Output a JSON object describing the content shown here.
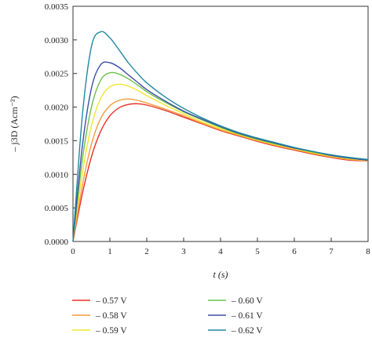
{
  "chart_data": {
    "type": "line",
    "xlabel": "t (s)",
    "ylabel": "– j3D (Acm⁻²)",
    "xlim": [
      0,
      8
    ],
    "ylim": [
      0,
      0.0035
    ],
    "x_ticks": [
      "0",
      "1",
      "2",
      "3",
      "4",
      "5",
      "6",
      "7",
      "8"
    ],
    "y_ticks": [
      "0.0000",
      "0.0005",
      "0.0010",
      "0.0015",
      "0.0020",
      "0.0025",
      "0.0030",
      "0.0035"
    ],
    "grid": false,
    "legend_position": "bottom",
    "x": [
      0,
      0.25,
      0.5,
      0.75,
      1.0,
      1.25,
      1.5,
      1.75,
      2.0,
      2.5,
      3.0,
      3.5,
      4.0,
      4.5,
      5.0,
      5.5,
      6.0,
      6.5,
      7.0,
      7.5,
      8.0
    ],
    "series": [
      {
        "name": "– 0.57 V",
        "color": "#e8312a",
        "values": [
          0,
          0.0007,
          0.00126,
          0.00164,
          0.00187,
          0.00199,
          0.00204,
          0.00205,
          0.00203,
          0.00195,
          0.00185,
          0.00175,
          0.00165,
          0.00157,
          0.00149,
          0.00142,
          0.00136,
          0.0013,
          0.00125,
          0.00121,
          0.0012
        ]
      },
      {
        "name": "– 0.58 V",
        "color": "#f59a3a",
        "values": [
          0,
          0.00082,
          0.00145,
          0.00183,
          0.00202,
          0.0021,
          0.00212,
          0.0021,
          0.00206,
          0.00197,
          0.00187,
          0.00176,
          0.00166,
          0.00158,
          0.0015,
          0.00143,
          0.00137,
          0.00131,
          0.00126,
          0.00122,
          0.0012
        ]
      },
      {
        "name": "– 0.59 V",
        "color": "#f2e62e",
        "values": [
          0,
          0.001,
          0.00172,
          0.00213,
          0.0023,
          0.00234,
          0.00231,
          0.00225,
          0.00217,
          0.00203,
          0.0019,
          0.00178,
          0.00168,
          0.00159,
          0.00151,
          0.00144,
          0.00138,
          0.00132,
          0.00127,
          0.00123,
          0.00121
        ]
      },
      {
        "name": "– 0.60 V",
        "color": "#6cc04a",
        "values": [
          0,
          0.0012,
          0.002,
          0.0024,
          0.00251,
          0.00249,
          0.00242,
          0.00233,
          0.00223,
          0.00207,
          0.00193,
          0.00181,
          0.0017,
          0.0016,
          0.00152,
          0.00145,
          0.00139,
          0.00133,
          0.00128,
          0.00124,
          0.00121
        ]
      },
      {
        "name": "– 0.61 V",
        "color": "#3d4fa8",
        "values": [
          0,
          0.0014,
          0.00228,
          0.00263,
          0.00266,
          0.00259,
          0.00248,
          0.00237,
          0.00226,
          0.00209,
          0.00194,
          0.00182,
          0.00171,
          0.00161,
          0.00153,
          0.00146,
          0.00139,
          0.00134,
          0.00128,
          0.00124,
          0.00121
        ]
      },
      {
        "name": "– 0.62 V",
        "color": "#1f8a9e",
        "values": [
          0,
          0.00185,
          0.0029,
          0.00312,
          0.00303,
          0.00285,
          0.00266,
          0.0025,
          0.00236,
          0.00215,
          0.00198,
          0.00184,
          0.00172,
          0.00162,
          0.00154,
          0.00147,
          0.0014,
          0.00134,
          0.00129,
          0.00125,
          0.00122
        ]
      }
    ]
  }
}
